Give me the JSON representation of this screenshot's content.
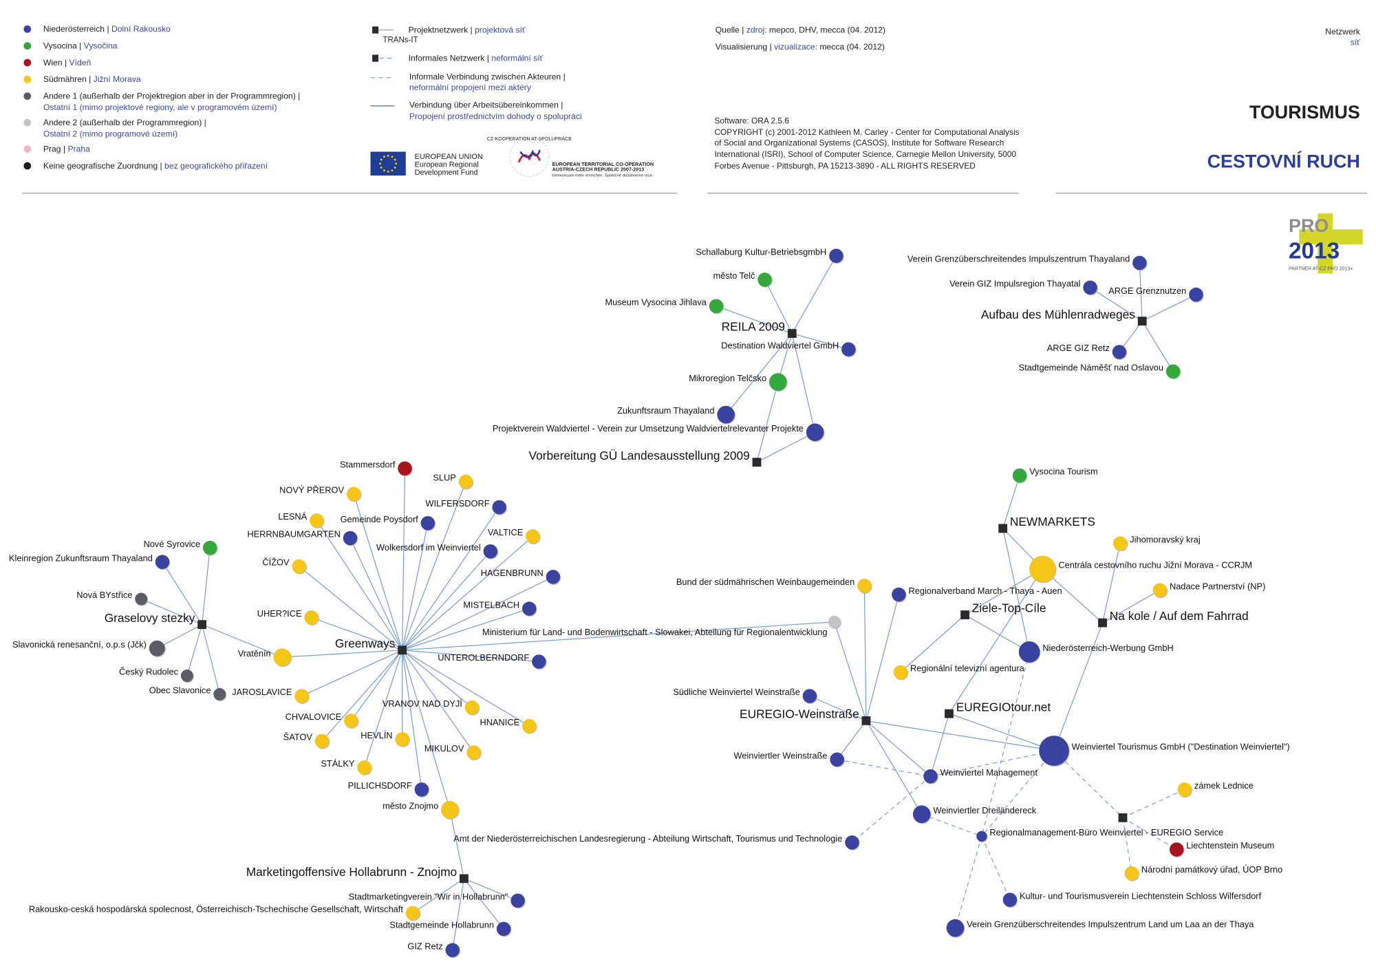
{
  "legend": {
    "regions": [
      {
        "de": "Niederösterreich",
        "cz": "Dolní Rakousko",
        "color": "#3a44a0"
      },
      {
        "de": "Vysocina",
        "cz": "Vysočina",
        "color": "#34a83c"
      },
      {
        "de": "Wien",
        "cz": "Vídeň",
        "color": "#a8141e"
      },
      {
        "de": "Südmähren",
        "cz": "Jižní Morava",
        "color": "#f5c518"
      },
      {
        "de": "Andere 1 (außerhalb der Projektregion aber in der Programmregion) |",
        "cz": "Ostatní 1 (mimo projektové regiony, ale v programovém území)",
        "color": "#5a5d66"
      },
      {
        "de": "Andere 2 (außerhalb der Programmregion) |",
        "cz": "Ostatní 2 (mimo programové území)",
        "color": "#c4c4c4"
      },
      {
        "de": "Prag",
        "cz": "Praha",
        "color": "#f4b8c0"
      },
      {
        "de": "Keine geografische Zuordnung",
        "cz": "bez geografického přiřazení",
        "color": "#1a1a1a"
      }
    ],
    "lines": [
      {
        "de": "Projektnetzwerk |",
        "cz": "projektová síť",
        "sample": "TRANs-IT"
      },
      {
        "de": "Informales Netzwerk |",
        "cz": "neformální síť"
      },
      {
        "de": "Informale Verbindung zwischen Akteuren |",
        "cz": "neformální propojení mezi aktéry"
      },
      {
        "de": "Verbindung über Arbeitsübereinkommen |",
        "cz": "Propojení prostřednictvím dohody o spolupráci"
      }
    ]
  },
  "logos": {
    "eu": [
      "EUROPEAN UNION",
      "European Regional",
      "Development Fund"
    ],
    "etc": [
      "EUROPEAN TERRITORIAL CO-OPERATION",
      "AUSTRIA-CZECH REPUBLIC 2007-2013",
      "Gemeinsam mehr erreichen. Společně dosáhneme více."
    ],
    "etc_ring": "CZ-KOOPERATION AT-SPOLUPRÁCE",
    "pro": [
      "PRO",
      "2013",
      "PARTNER AT-CZ PRO 2013+"
    ]
  },
  "credits": {
    "source_de": "Quelle |",
    "source_cz": "zdroj:",
    "source_val": "mepco, DHV, mecca (04. 2012)",
    "vis_de": "Visualisierung |",
    "vis_cz": "vizualizace:",
    "vis_val": "mecca (04. 2012)",
    "software": "Software: ORA 2.5.6",
    "copyright": [
      "COPYRIGHT (c) 2001-2012 Kathleen M. Carley - Center for Computational Analysis",
      "of Social and Organizational Systems (CASOS), Institute for Software Research",
      "International (ISRI), School of Computer Science, Carnegie Mellon University, 5000",
      "Forbes Avenue - Pittsburgh, PA 15213-3890 - ALL RIGHTS RESERVED"
    ]
  },
  "header": {
    "network_de": "Netzwerk",
    "network_cz": "síť",
    "title_de": "TOURISMUS",
    "title_cz": "CESTOVNÍ RUCH"
  },
  "colors": {
    "at": "#3a44a0",
    "vys": "#34a83c",
    "wien": "#a8141e",
    "jm": "#f5c518",
    "other1": "#5a5d66",
    "other2": "#c4c4c4",
    "hub": "#2b2b2b",
    "edge": "#6f9ad6"
  },
  "network": {
    "nodes": [
      {
        "id": "reila",
        "label": "REILA 2009",
        "type": "project"
      },
      {
        "id": "schallaburg",
        "label": "Schallaburg Kultur-BetriebsgmbH",
        "region": "at"
      },
      {
        "id": "telc",
        "label": "město Telč",
        "region": "vys"
      },
      {
        "id": "museumvys",
        "label": "Museum Vysocina Jihlava",
        "region": "vys"
      },
      {
        "id": "destwald",
        "label": "Destination Waldviertel GmbH",
        "region": "at"
      },
      {
        "id": "telcsko",
        "label": "Mikroregion Telčsko",
        "region": "vys"
      },
      {
        "id": "zukunft",
        "label": "Zukunftsraum Thayaland",
        "region": "at"
      },
      {
        "id": "projektverein",
        "label": "Projektverein Waldviertel - Verein zur Umsetzung Waldviertelrelevanter Projekte",
        "region": "at"
      },
      {
        "id": "vorbereitung",
        "label": "Vorbereitung GÜ Landesausstellung 2009",
        "type": "project"
      },
      {
        "id": "muehlen",
        "label": "Aufbau des Mühlenradweges",
        "type": "project"
      },
      {
        "id": "vgithaya",
        "label": "Verein Grenzüberschreitendes Impulszentrum Thayaland",
        "region": "at"
      },
      {
        "id": "gizthayatal",
        "label": "Verein GIZ Impulsregion Thayatal",
        "region": "at"
      },
      {
        "id": "argegrenz",
        "label": "ARGE Grenznutzen",
        "region": "at"
      },
      {
        "id": "argeretz",
        "label": "ARGE GIZ Retz",
        "region": "at"
      },
      {
        "id": "namest",
        "label": "Stadtgemeinde Náměšť nad Oslavou",
        "region": "vys"
      },
      {
        "id": "grasel",
        "label": "Graselovy stezky",
        "type": "project"
      },
      {
        "id": "novesyrovice",
        "label": "Nové Syrovice",
        "region": "vys"
      },
      {
        "id": "kleinregion",
        "label": "Kleinregion Zukunftsraum Thayaland",
        "region": "at"
      },
      {
        "id": "novabystrice",
        "label": "Nová BYstřice",
        "region": "other1"
      },
      {
        "id": "slavonicka",
        "label": "Slavonická renesanční, o.p.s (Jčk)",
        "region": "other1"
      },
      {
        "id": "rudolec",
        "label": "Český Rudolec",
        "region": "other1"
      },
      {
        "id": "obecslavonice",
        "label": "Obec Slavonice",
        "region": "other1"
      },
      {
        "id": "vratenin",
        "label": "Vratěnín",
        "region": "jm"
      },
      {
        "id": "greenways",
        "label": "Greenways",
        "type": "project"
      },
      {
        "id": "stammersdorf",
        "label": "Stammersdorf",
        "region": "wien"
      },
      {
        "id": "slup",
        "label": "SLUP",
        "region": "jm"
      },
      {
        "id": "novyprerov",
        "label": "NOVÝ PŘEROV",
        "region": "jm"
      },
      {
        "id": "wilfersdorf",
        "label": "WILFERSDORF",
        "region": "at"
      },
      {
        "id": "lesna",
        "label": "LESNÁ",
        "region": "jm"
      },
      {
        "id": "poysdorf",
        "label": "Gemeinde Poysdorf",
        "region": "at"
      },
      {
        "id": "herrnbaum",
        "label": "HERRNBAUMGARTEN",
        "region": "at"
      },
      {
        "id": "valtice",
        "label": "VALTICE",
        "region": "jm"
      },
      {
        "id": "wolkersdorf",
        "label": "Wolkersdorf im Weinviertel",
        "region": "at"
      },
      {
        "id": "cizov",
        "label": "ČÍŽOV",
        "region": "jm"
      },
      {
        "id": "hagenbrunn",
        "label": "HAGENBRUNN",
        "region": "at"
      },
      {
        "id": "mistelbach",
        "label": "MISTELBACH",
        "region": "at"
      },
      {
        "id": "uherice",
        "label": "UHER?ICE",
        "region": "jm"
      },
      {
        "id": "ministerium",
        "label": "Ministerium für Land- und Bodenwirtschaft - Slowakei, Abteilung für Regionalentwicklung",
        "region": "other2"
      },
      {
        "id": "unterolberndorf",
        "label": "UNTEROLBERNDORF",
        "region": "at"
      },
      {
        "id": "jaroslavice",
        "label": "JAROSLAVICE",
        "region": "jm"
      },
      {
        "id": "vranov",
        "label": "VRANOV NAD DYJÍ",
        "region": "jm"
      },
      {
        "id": "hnanice",
        "label": "HNANICE",
        "region": "jm"
      },
      {
        "id": "chvalovice",
        "label": "CHVALOVICE",
        "region": "jm"
      },
      {
        "id": "satov",
        "label": "ŠATOV",
        "region": "jm"
      },
      {
        "id": "hevlin",
        "label": "HEVLÍN",
        "region": "jm"
      },
      {
        "id": "mikulov",
        "label": "MIKULOV",
        "region": "jm"
      },
      {
        "id": "stalky",
        "label": "STÁLKY",
        "region": "jm"
      },
      {
        "id": "pillichsdorf",
        "label": "PILLICHSDORF",
        "region": "at"
      },
      {
        "id": "znojmo",
        "label": "město Znojmo",
        "region": "jm"
      },
      {
        "id": "amt",
        "label": "Amt der Niederösterreichischen Landesregierung - Abteilung Wirtschaft, Tourismus und Technologie",
        "region": "at"
      },
      {
        "id": "marketing",
        "label": "Marketingoffensive Hollabrunn - Znojmo",
        "type": "project"
      },
      {
        "id": "stadtmarketing",
        "label": "Stadtmarketingverein \"Wir in Hollabrunn\"",
        "region": "at"
      },
      {
        "id": "rakousko",
        "label": "Rakousko-ceská hospodárská spolecnost, Österreichisch-Tschechische Gesellschaft, Wirtschaft",
        "region": "jm"
      },
      {
        "id": "hollabrunn",
        "label": "Stadtgemeinde Hollabrunn",
        "region": "at"
      },
      {
        "id": "gizretz",
        "label": "GIZ Retz",
        "region": "at"
      },
      {
        "id": "vysocinatour",
        "label": "Vysocina Tourism",
        "region": "vys"
      },
      {
        "id": "newmarkets",
        "label": "NEWMARKETS",
        "type": "project"
      },
      {
        "id": "ccrjm",
        "label": "Centrála cestovního ruchu Jižní Morava - CCRJM",
        "region": "jm"
      },
      {
        "id": "jmkraj",
        "label": "Jihomoravský kraj",
        "region": "jm"
      },
      {
        "id": "nadace",
        "label": "Nadace Partnerství (NP)",
        "region": "jm"
      },
      {
        "id": "bund",
        "label": "Bund der südmährischen Weinbaugemeinden",
        "region": "jm"
      },
      {
        "id": "regverband",
        "label": "Regionalverband March - Thaya - Auen",
        "region": "at"
      },
      {
        "id": "ziele",
        "label": "Ziele-Top-Cíle",
        "type": "project"
      },
      {
        "id": "nakole",
        "label": "Na kole / Auf dem Fahrrad",
        "type": "project"
      },
      {
        "id": "noewerbung",
        "label": "Niederösterreich-Werbung GmbH",
        "region": "at"
      },
      {
        "id": "regtv",
        "label": "Regionální televizní agentura",
        "region": "jm"
      },
      {
        "id": "suedliche",
        "label": "Südliche Weinviertel Weinstraße",
        "region": "at"
      },
      {
        "id": "euregiow",
        "label": "EUREGIO-Weinstraße",
        "type": "project"
      },
      {
        "id": "euregiotour",
        "label": "EUREGIOtour.net",
        "type": "project"
      },
      {
        "id": "wvtourismus",
        "label": "Weinviertel Tourismus GmbH (\"Destination Weinviertel\")",
        "region": "at"
      },
      {
        "id": "wvweinstr",
        "label": "Weinviertler Weinstraße",
        "region": "at"
      },
      {
        "id": "wvmanagement",
        "label": "Weinviertel Management",
        "region": "at"
      },
      {
        "id": "zamek",
        "label": "zámek Lednice",
        "region": "jm"
      },
      {
        "id": "dreilaender",
        "label": "Weinviertler Dreiländereck",
        "region": "at"
      },
      {
        "id": "informalhub",
        "label": "",
        "type": "informal"
      },
      {
        "id": "regman",
        "label": "Regionalmanagement-Büro Weinviertel - EUREGIO Service",
        "region": "at"
      },
      {
        "id": "liechtmuseum",
        "label": "Liechtenstein Museum",
        "region": "wien"
      },
      {
        "id": "narodni",
        "label": "Národní památkový úřad, ÚOP Brno",
        "region": "jm"
      },
      {
        "id": "kulturverein",
        "label": "Kultur- und Tourismusverein Liechtenstein Schloss Wilfersdorf",
        "region": "at"
      },
      {
        "id": "vereinlaa",
        "label": "Verein Grenzüberschreitendes Impulszentrum Land um Laa an der Thaya",
        "region": "at"
      }
    ],
    "edges": [
      [
        "reila",
        "schallaburg",
        "formal"
      ],
      [
        "reila",
        "telc",
        "formal"
      ],
      [
        "reila",
        "museumvys",
        "formal"
      ],
      [
        "reila",
        "destwald",
        "formal"
      ],
      [
        "reila",
        "telcsko",
        "formal"
      ],
      [
        "reila",
        "zukunft",
        "formal"
      ],
      [
        "reila",
        "projektverein",
        "formal"
      ],
      [
        "vorbereitung",
        "telcsko",
        "formal"
      ],
      [
        "vorbereitung",
        "projektverein",
        "formal"
      ],
      [
        "muehlen",
        "vgithaya",
        "formal"
      ],
      [
        "muehlen",
        "gizthayatal",
        "formal"
      ],
      [
        "muehlen",
        "argegrenz",
        "formal"
      ],
      [
        "muehlen",
        "argeretz",
        "formal"
      ],
      [
        "muehlen",
        "namest",
        "formal"
      ],
      [
        "grasel",
        "novesyrovice",
        "formal"
      ],
      [
        "grasel",
        "kleinregion",
        "formal"
      ],
      [
        "grasel",
        "novabystrice",
        "formal"
      ],
      [
        "grasel",
        "slavonicka",
        "formal"
      ],
      [
        "grasel",
        "rudolec",
        "formal"
      ],
      [
        "grasel",
        "obecslavonice",
        "formal"
      ],
      [
        "grasel",
        "vratenin",
        "formal"
      ],
      [
        "greenways",
        "stammersdorf",
        "formal"
      ],
      [
        "greenways",
        "slup",
        "formal"
      ],
      [
        "greenways",
        "novyprerov",
        "formal"
      ],
      [
        "greenways",
        "wilfersdorf",
        "formal"
      ],
      [
        "greenways",
        "lesna",
        "formal"
      ],
      [
        "greenways",
        "poysdorf",
        "formal"
      ],
      [
        "greenways",
        "herrnbaum",
        "formal"
      ],
      [
        "greenways",
        "valtice",
        "formal"
      ],
      [
        "greenways",
        "wolkersdorf",
        "formal"
      ],
      [
        "greenways",
        "cizov",
        "formal"
      ],
      [
        "greenways",
        "hagenbrunn",
        "formal"
      ],
      [
        "greenways",
        "mistelbach",
        "formal"
      ],
      [
        "greenways",
        "uherice",
        "formal"
      ],
      [
        "greenways",
        "ministerium",
        "formal"
      ],
      [
        "greenways",
        "unterolberndorf",
        "formal"
      ],
      [
        "greenways",
        "jaroslavice",
        "formal"
      ],
      [
        "greenways",
        "vranov",
        "formal"
      ],
      [
        "greenways",
        "hnanice",
        "formal"
      ],
      [
        "greenways",
        "chvalovice",
        "formal"
      ],
      [
        "greenways",
        "satov",
        "formal"
      ],
      [
        "greenways",
        "hevlin",
        "formal"
      ],
      [
        "greenways",
        "mikulov",
        "formal"
      ],
      [
        "greenways",
        "stalky",
        "formal"
      ],
      [
        "greenways",
        "pillichsdorf",
        "formal"
      ],
      [
        "greenways",
        "znojmo",
        "formal"
      ],
      [
        "greenways",
        "vratenin",
        "formal"
      ],
      [
        "marketing",
        "znojmo",
        "formal"
      ],
      [
        "marketing",
        "stadtmarketing",
        "formal"
      ],
      [
        "marketing",
        "rakousko",
        "formal"
      ],
      [
        "marketing",
        "hollabrunn",
        "formal"
      ],
      [
        "marketing",
        "gizretz",
        "formal"
      ],
      [
        "newmarkets",
        "vysocinatour",
        "formal"
      ],
      [
        "newmarkets",
        "ccrjm",
        "formal"
      ],
      [
        "newmarkets",
        "noewerbung",
        "formal"
      ],
      [
        "nakole",
        "ccrjm",
        "formal"
      ],
      [
        "nakole",
        "jmkraj",
        "formal"
      ],
      [
        "nakole",
        "nadace",
        "formal"
      ],
      [
        "nakole",
        "wvtourismus",
        "formal"
      ],
      [
        "ziele",
        "ccrjm",
        "formal"
      ],
      [
        "ziele",
        "regtv",
        "formal"
      ],
      [
        "ziele",
        "noewerbung",
        "formal"
      ],
      [
        "euregiotour",
        "ccrjm",
        "formal"
      ],
      [
        "euregiotour",
        "wvtourismus",
        "formal"
      ],
      [
        "euregiotour",
        "wvmanagement",
        "formal"
      ],
      [
        "euregiow",
        "bund",
        "formal"
      ],
      [
        "euregiow",
        "regverband",
        "formal"
      ],
      [
        "euregiow",
        "ministerium",
        "formal"
      ],
      [
        "euregiow",
        "suedliche",
        "formal"
      ],
      [
        "euregiow",
        "wvtourismus",
        "formal"
      ],
      [
        "euregiow",
        "wvweinstr",
        "formal"
      ],
      [
        "euregiow",
        "wvmanagement",
        "formal"
      ],
      [
        "euregiow",
        "dreilaender",
        "formal"
      ],
      [
        "wvweinstr",
        "wvmanagement",
        "informal"
      ],
      [
        "wvmanagement",
        "wvtourismus",
        "informal"
      ],
      [
        "wvmanagement",
        "amt",
        "informal"
      ],
      [
        "wvtourismus",
        "regman",
        "informal"
      ],
      [
        "dreilaender",
        "regman",
        "informal"
      ],
      [
        "noewerbung",
        "regman",
        "informal"
      ],
      [
        "regman",
        "kulturverein",
        "informal"
      ],
      [
        "regman",
        "vereinlaa",
        "informal"
      ],
      [
        "wvtourismus",
        "informalhub",
        "informal"
      ],
      [
        "informalhub",
        "zamek",
        "informal"
      ],
      [
        "informalhub",
        "liechtmuseum",
        "informal"
      ],
      [
        "informalhub",
        "narodni",
        "informal"
      ]
    ]
  }
}
